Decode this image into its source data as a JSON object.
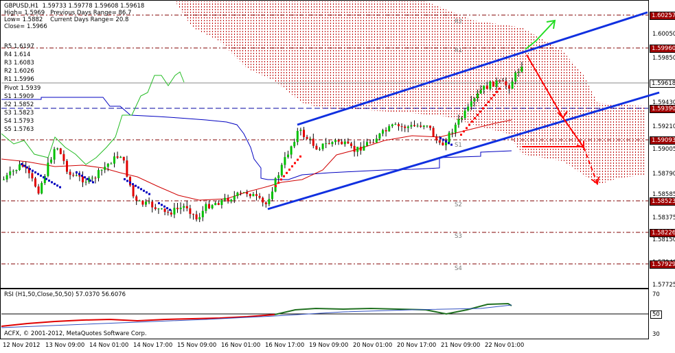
{
  "header": {
    "symbol_line": "GBPUSD,H1  1.59733 1.59778 1.59608 1.59618",
    "high": "High= 1.5969",
    "prev_range": "Previous Days Range= 86.7",
    "low": "Low= 1.5882",
    "curr_range": "Current Days Range= 20.8",
    "close": "Close= 1.5966"
  },
  "pivots": {
    "r5": "R5 1.6197",
    "r4": "R4 1.614",
    "r3": "R3 1.6083",
    "r2": "R2 1.6026",
    "r1": "R1 1.5996",
    "pivot": "Pivot 1.5939",
    "s1": "S1 1.5909",
    "s2": "S2 1.5852",
    "s3": "S3 1.5823",
    "s4": "S4 1.5793",
    "s5": "S5 1.5763"
  },
  "level_labels": {
    "r2": "R2",
    "r1": "R1",
    "s1": "S1",
    "s2": "S2",
    "s3": "S3",
    "s4": "S4"
  },
  "price_axis": [
    "1.60050",
    "1.59850",
    "1.59430",
    "1.59210",
    "1.59005",
    "1.58790",
    "1.58585",
    "1.58375",
    "1.58150",
    "1.57940",
    "1.57725"
  ],
  "price_tags": {
    "r2": "1.60257",
    "r1": "1.59960",
    "current": "1.59618",
    "pivot": "1.59390",
    "s1": "1.59093",
    "s2": "1.58523",
    "s3": "1.58226",
    "s4": "1.57929"
  },
  "rsi": {
    "label": "RSI (H1,50,Close,50,50) 57.0370 56.6076",
    "axis": [
      "70",
      "50",
      "30"
    ]
  },
  "copyright": "ACFX, © 2001-2012, MetaQuotes Software Corp.",
  "time_axis": [
    "12 Nov 2012",
    "13 Nov 09:00",
    "14 Nov 01:00",
    "14 Nov 17:00",
    "15 Nov 09:00",
    "16 Nov 01:00",
    "16 Nov 17:00",
    "19 Nov 09:00",
    "20 Nov 01:00",
    "20 Nov 17:00",
    "21 Nov 09:00",
    "22 Nov 01:00"
  ],
  "colors": {
    "bull": "#00c000",
    "bear": "#e00000",
    "trend": "#0000ff",
    "cloud": "#c00000",
    "arrow_red": "#ff0000",
    "arrow_green": "#22dd22",
    "level": "#800000",
    "tag_bg": "#a00000"
  }
}
